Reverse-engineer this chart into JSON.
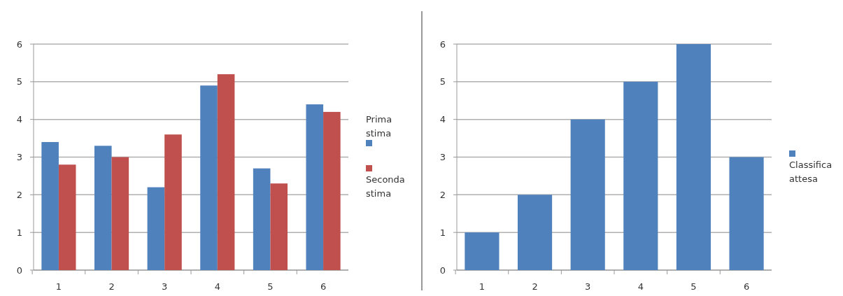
{
  "chart_data": [
    {
      "type": "bar",
      "categories": [
        "1",
        "2",
        "3",
        "4",
        "5",
        "6"
      ],
      "series": [
        {
          "name": "Prima stima",
          "color": "#4f81bd",
          "values": [
            3.4,
            3.3,
            2.2,
            4.9,
            2.7,
            4.4
          ]
        },
        {
          "name": "Seconda stima",
          "color": "#c0504d",
          "values": [
            2.8,
            3.0,
            3.6,
            5.2,
            2.3,
            4.2
          ]
        }
      ],
      "ylim": [
        0,
        6
      ],
      "yticks": [
        0,
        1,
        2,
        3,
        4,
        5,
        6
      ],
      "grid": true,
      "legend": "right"
    },
    {
      "type": "bar",
      "categories": [
        "1",
        "2",
        "3",
        "4",
        "5",
        "6"
      ],
      "series": [
        {
          "name": "Classifica attesa",
          "color": "#4f81bd",
          "values": [
            1,
            2,
            4,
            5,
            6,
            3
          ]
        }
      ],
      "ylim": [
        0,
        6
      ],
      "yticks": [
        0,
        1,
        2,
        3,
        4,
        5,
        6
      ],
      "grid": true,
      "legend": "right"
    }
  ]
}
